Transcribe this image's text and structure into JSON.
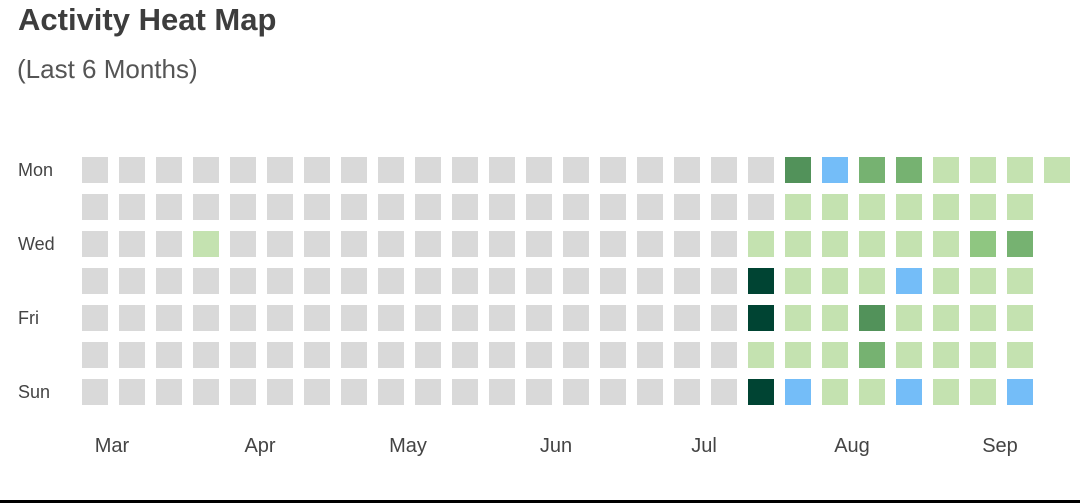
{
  "chart_title": "Activity Heat Map",
  "chart_subtitle": "(Last 6 Months)",
  "chart_data": {
    "type": "heatmap",
    "title": "Activity Heat Map",
    "subtitle": "(Last 6 Months)",
    "row_labels": [
      "Mon",
      "",
      "Wed",
      "",
      "Fri",
      "",
      "Sun"
    ],
    "month_labels": [
      {
        "label": "Mar",
        "week": 0
      },
      {
        "label": "Apr",
        "week": 4
      },
      {
        "label": "May",
        "week": 8
      },
      {
        "label": "Jun",
        "week": 12
      },
      {
        "label": "Jul",
        "week": 16
      },
      {
        "label": "Aug",
        "week": 20
      },
      {
        "label": "Sep",
        "week": 24
      }
    ],
    "levels": {
      "0": "#d9d9d9",
      "1": "#c4e2b0",
      "2": "#8fc681",
      "3": "#76b271",
      "4": "#52925a",
      "5": "#004433",
      "6": "#74bdf8"
    },
    "weeks": 27,
    "cells": [
      [
        0,
        0,
        0,
        0,
        0,
        0,
        0,
        0,
        0,
        0,
        0,
        0,
        0,
        0,
        0,
        0,
        0,
        0,
        0,
        4,
        6,
        3,
        3,
        1,
        1,
        1,
        1
      ],
      [
        0,
        0,
        0,
        0,
        0,
        0,
        0,
        0,
        0,
        0,
        0,
        0,
        0,
        0,
        0,
        0,
        0,
        0,
        0,
        1,
        1,
        1,
        1,
        1,
        1,
        1,
        null
      ],
      [
        0,
        0,
        0,
        1,
        0,
        0,
        0,
        0,
        0,
        0,
        0,
        0,
        0,
        0,
        0,
        0,
        0,
        0,
        1,
        1,
        1,
        1,
        1,
        1,
        2,
        3,
        null
      ],
      [
        0,
        0,
        0,
        0,
        0,
        0,
        0,
        0,
        0,
        0,
        0,
        0,
        0,
        0,
        0,
        0,
        0,
        0,
        5,
        1,
        1,
        1,
        6,
        1,
        1,
        1,
        null
      ],
      [
        0,
        0,
        0,
        0,
        0,
        0,
        0,
        0,
        0,
        0,
        0,
        0,
        0,
        0,
        0,
        0,
        0,
        0,
        5,
        1,
        1,
        4,
        1,
        1,
        1,
        1,
        null
      ],
      [
        0,
        0,
        0,
        0,
        0,
        0,
        0,
        0,
        0,
        0,
        0,
        0,
        0,
        0,
        0,
        0,
        0,
        0,
        1,
        1,
        1,
        3,
        1,
        1,
        1,
        1,
        null
      ],
      [
        0,
        0,
        0,
        0,
        0,
        0,
        0,
        0,
        0,
        0,
        0,
        0,
        0,
        0,
        0,
        0,
        0,
        0,
        5,
        6,
        1,
        1,
        6,
        1,
        1,
        6,
        null
      ]
    ]
  }
}
